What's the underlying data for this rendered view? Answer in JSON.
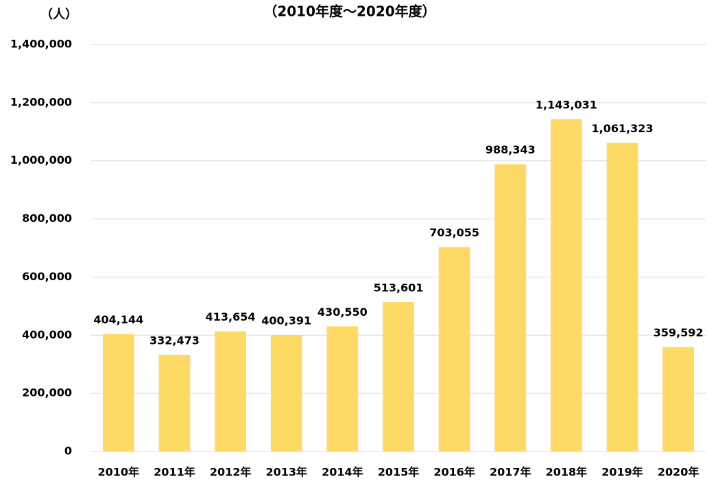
{
  "chart_data": {
    "type": "bar",
    "title": "（2010年度～2020年度）",
    "y_label": "（人）",
    "categories": [
      "2010年",
      "2011年",
      "2012年",
      "2013年",
      "2014年",
      "2015年",
      "2016年",
      "2017年",
      "2018年",
      "2019年",
      "2020年"
    ],
    "values": [
      404144,
      332473,
      413654,
      400391,
      430550,
      513601,
      703055,
      988343,
      1143031,
      1061323,
      359592
    ],
    "value_labels": [
      "404,144",
      "332,473",
      "413,654",
      "400,391",
      "430,550",
      "513,601",
      "703,055",
      "988,343",
      "1,143,031",
      "1,061,323",
      "359,592"
    ],
    "color": "#ffd966",
    "ylim": [
      0,
      1400000
    ],
    "yticks": [
      0,
      {
        "value": 200000,
        "label": "200,000"
      },
      {
        "value": 400000,
        "label": "400,000"
      },
      {
        "value": 600000,
        "label": "600,000"
      },
      {
        "value": 800000,
        "label": "800,000"
      },
      {
        "value": 1000000,
        "label": "1,000,000"
      },
      {
        "value": 1200000,
        "label": "1,200,000"
      },
      {
        "value": 1400000,
        "label": "1,400,000"
      }
    ],
    "grid": true
  }
}
